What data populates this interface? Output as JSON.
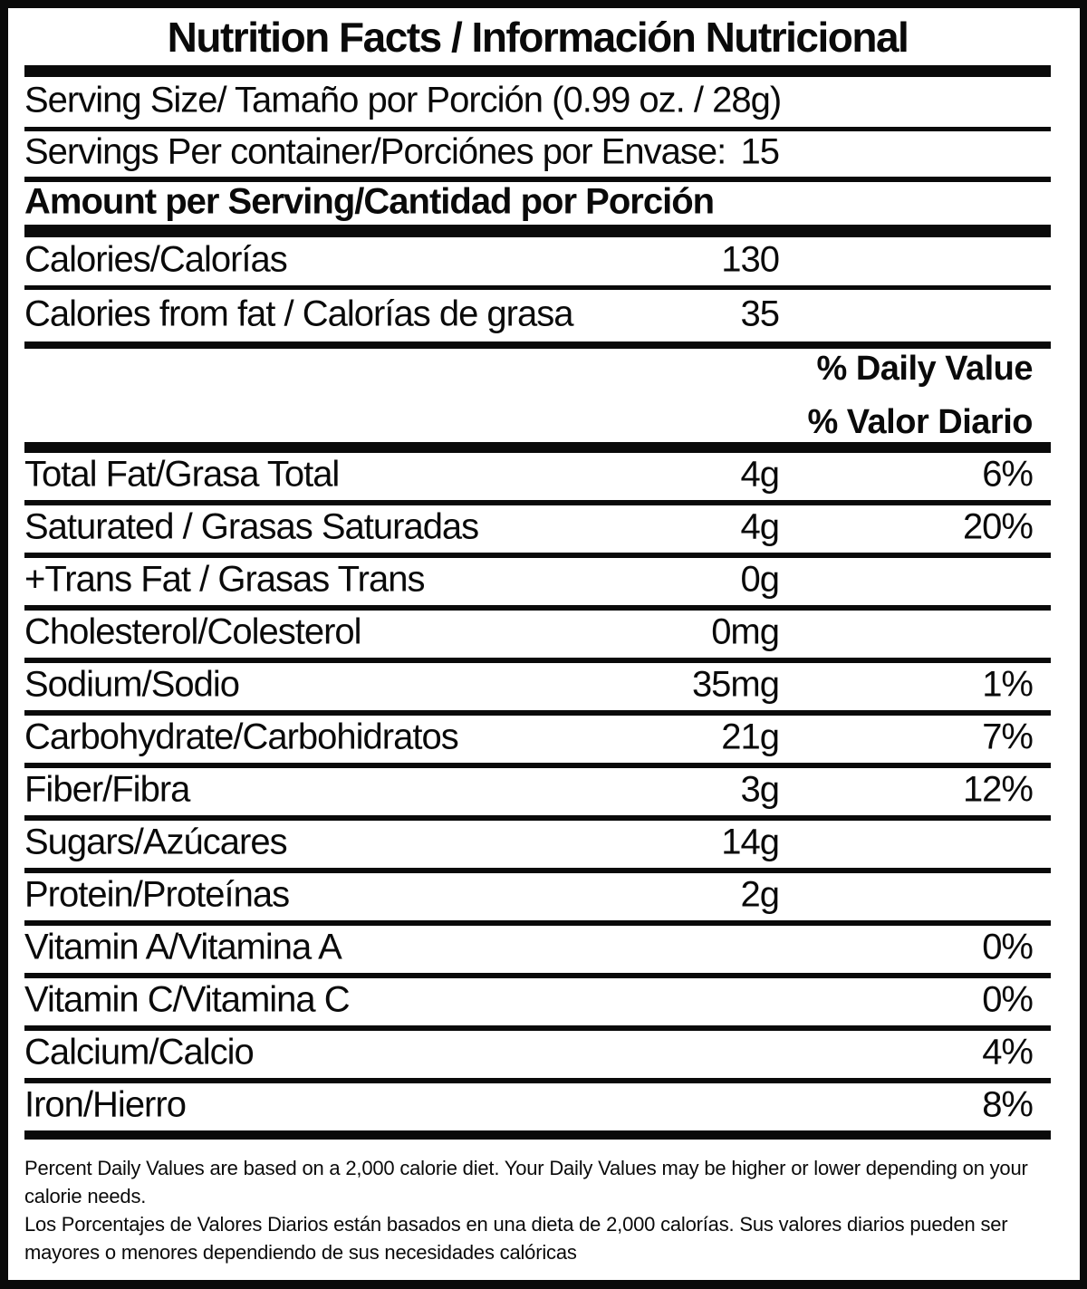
{
  "title": "Nutrition Facts / Información Nutricional",
  "header": {
    "serving_size": "Serving Size/ Tamaño por Porción  (0.99 oz. / 28g)",
    "servings_label": "Servings Per container/Porciónes por Envase:",
    "servings_value": "15",
    "amount_per_serving": "Amount per Serving/Cantidad por Porción",
    "calories_label": "Calories/Calorías",
    "calories_value": "130",
    "calories_fat_label": "Calories from fat / Calorías de grasa",
    "calories_fat_value": "35",
    "daily_value_en": "% Daily Value",
    "daily_value_es": "% Valor Diario"
  },
  "nutrients": [
    {
      "label": "Total Fat/Grasa Total",
      "amount": "4g",
      "dv": "6%"
    },
    {
      "label": "Saturated / Grasas Saturadas",
      "amount": "4g",
      "dv": "20%"
    },
    {
      "label": "+Trans Fat / Grasas Trans",
      "amount": "0g",
      "dv": ""
    },
    {
      "label": "Cholesterol/Colesterol",
      "amount": "0mg",
      "dv": ""
    },
    {
      "label": "Sodium/Sodio",
      "amount": "35mg",
      "dv": "1%"
    },
    {
      "label": "Carbohydrate/Carbohidratos",
      "amount": "21g",
      "dv": "7%"
    },
    {
      "label": "Fiber/Fibra",
      "amount": "3g",
      "dv": "12%"
    },
    {
      "label": "Sugars/Azúcares",
      "amount": "14g",
      "dv": ""
    },
    {
      "label": "Protein/Proteínas",
      "amount": "2g",
      "dv": ""
    },
    {
      "label": "Vitamin A/Vitamina A",
      "amount": "",
      "dv": "0%"
    },
    {
      "label": "Vitamin C/Vitamina C",
      "amount": "",
      "dv": "0%"
    },
    {
      "label": "Calcium/Calcio",
      "amount": "",
      "dv": "4%"
    },
    {
      "label": "Iron/Hierro",
      "amount": "",
      "dv": "8%"
    }
  ],
  "footnote": {
    "en": "Percent Daily Values are based on a 2,000 calorie diet. Your Daily Values may be higher or lower depending on your calorie needs.",
    "es": "Los Porcentajes de Valores Diarios están basados en una dieta de 2,000 calorías. Sus valores diarios pueden ser mayores o menores dependiendo de sus necesidades calóricas"
  },
  "colors": {
    "ink": "#0a0a0a",
    "paper": "#ffffff"
  }
}
